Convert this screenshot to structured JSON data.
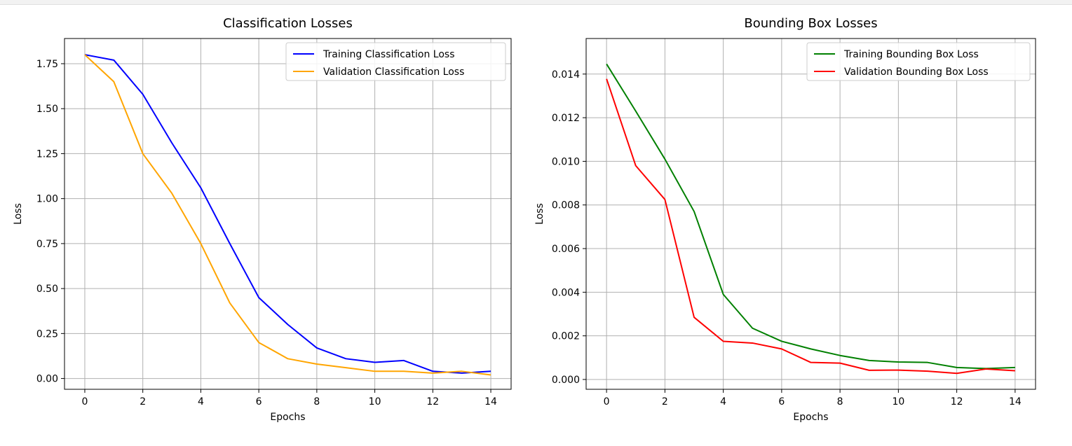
{
  "chart_data": [
    {
      "type": "line",
      "title": "Classification Losses",
      "xlabel": "Epochs",
      "ylabel": "Loss",
      "x": [
        0,
        1,
        2,
        3,
        4,
        5,
        6,
        7,
        8,
        9,
        10,
        11,
        12,
        13,
        14
      ],
      "xlim": [
        -0.7,
        14.7
      ],
      "ylim": [
        -0.06,
        1.89
      ],
      "xticks": [
        0,
        2,
        4,
        6,
        8,
        10,
        12,
        14
      ],
      "xtick_labels": [
        "0",
        "2",
        "4",
        "6",
        "8",
        "10",
        "12",
        "14"
      ],
      "yticks": [
        0,
        0.25,
        0.5,
        0.75,
        1.0,
        1.25,
        1.5,
        1.75
      ],
      "ytick_labels": [
        "0.00",
        "0.25",
        "0.50",
        "0.75",
        "1.00",
        "1.25",
        "1.50",
        "1.75"
      ],
      "grid": true,
      "legend_position": "upper-right",
      "series": [
        {
          "name": "Training Classification Loss",
          "color": "#0000ff",
          "values": [
            1.8,
            1.77,
            1.58,
            1.31,
            1.06,
            0.75,
            0.45,
            0.3,
            0.17,
            0.11,
            0.09,
            0.1,
            0.04,
            0.03,
            0.04
          ]
        },
        {
          "name": "Validation Classification Loss",
          "color": "#ffa500",
          "values": [
            1.8,
            1.65,
            1.25,
            1.03,
            0.75,
            0.42,
            0.2,
            0.11,
            0.08,
            0.06,
            0.04,
            0.04,
            0.03,
            0.04,
            0.02
          ]
        }
      ]
    },
    {
      "type": "line",
      "title": "Bounding Box Losses",
      "xlabel": "Epochs",
      "ylabel": "Loss",
      "x": [
        0,
        1,
        2,
        3,
        4,
        5,
        6,
        7,
        8,
        9,
        10,
        11,
        12,
        13,
        14
      ],
      "xlim": [
        -0.7,
        14.7
      ],
      "ylim": [
        -0.00045,
        0.01563
      ],
      "xticks": [
        0,
        2,
        4,
        6,
        8,
        10,
        12,
        14
      ],
      "xtick_labels": [
        "0",
        "2",
        "4",
        "6",
        "8",
        "10",
        "12",
        "14"
      ],
      "yticks": [
        0,
        0.002,
        0.004,
        0.006,
        0.008,
        0.01,
        0.012,
        0.014
      ],
      "ytick_labels": [
        "0.000",
        "0.002",
        "0.004",
        "0.006",
        "0.008",
        "0.010",
        "0.012",
        "0.014"
      ],
      "grid": true,
      "legend_position": "upper-right",
      "series": [
        {
          "name": "Training Bounding Box Loss",
          "color": "#008000",
          "values": [
            0.01446,
            0.0123,
            0.0101,
            0.0077,
            0.0039,
            0.00235,
            0.00175,
            0.0014,
            0.0011,
            0.00087,
            0.0008,
            0.00078,
            0.00055,
            0.0005,
            0.00055
          ]
        },
        {
          "name": "Validation Bounding Box Loss",
          "color": "#ff0000",
          "values": [
            0.01378,
            0.0098,
            0.00825,
            0.00285,
            0.00175,
            0.00167,
            0.0014,
            0.00078,
            0.00075,
            0.00042,
            0.00043,
            0.00038,
            0.00028,
            0.00048,
            0.0004
          ]
        }
      ]
    }
  ]
}
